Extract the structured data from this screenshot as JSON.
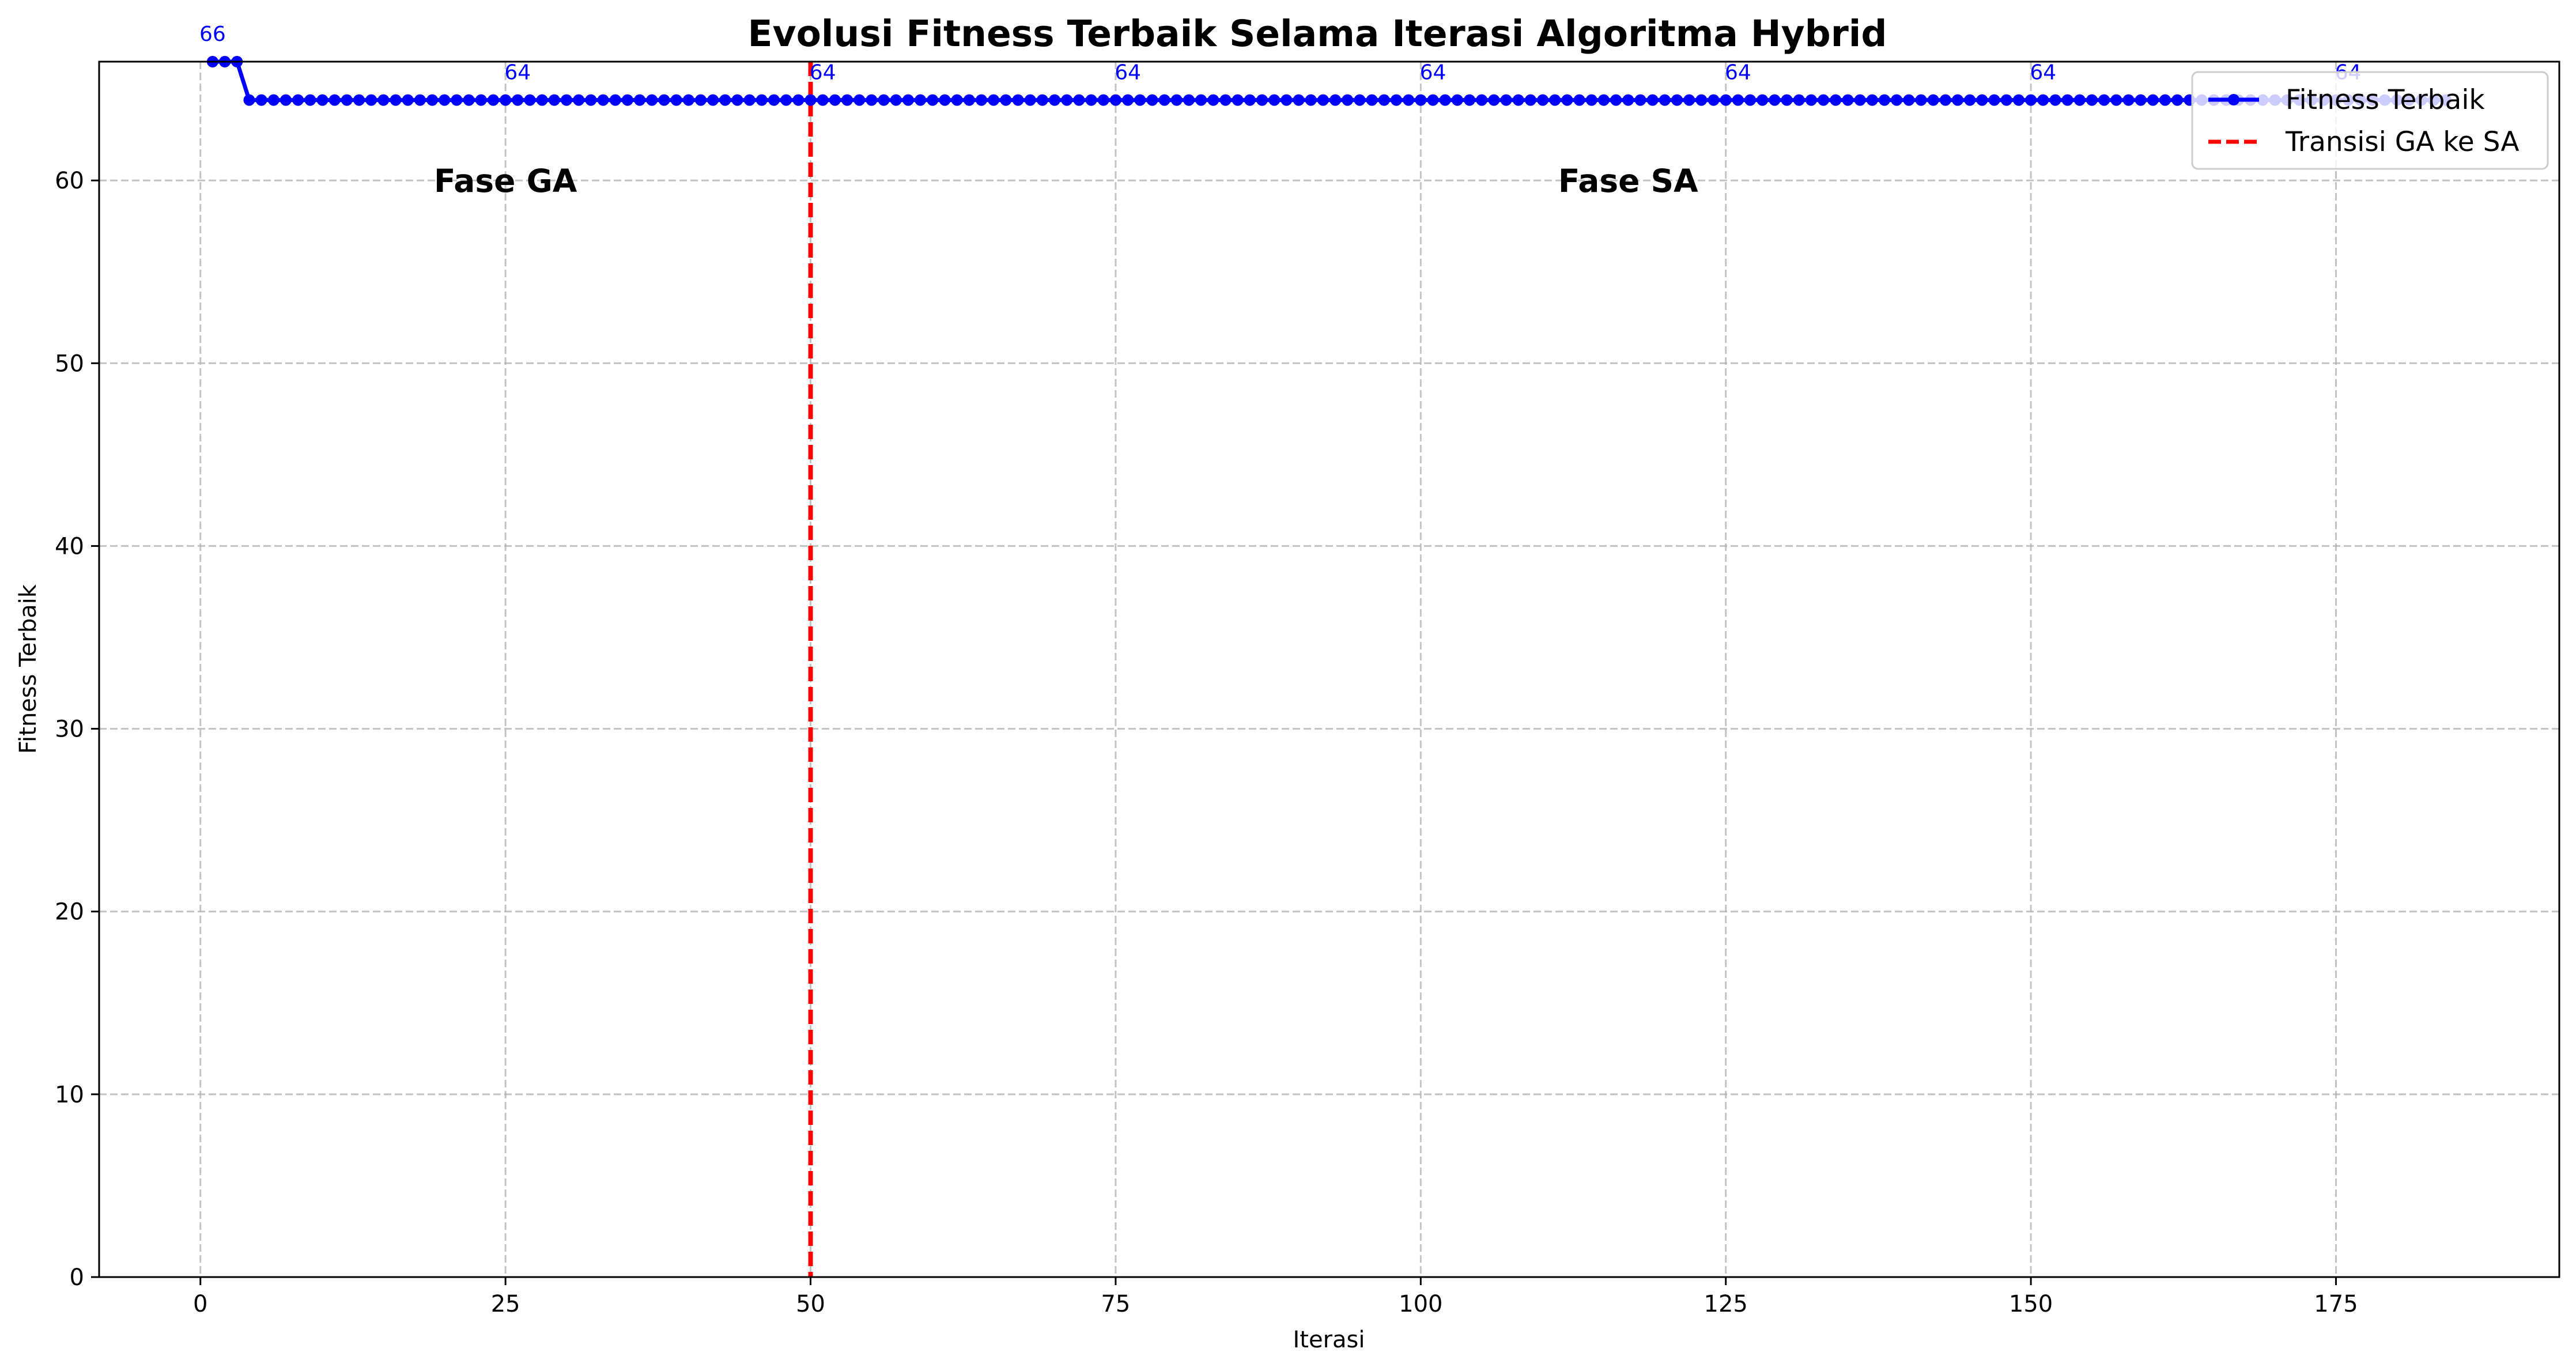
{
  "chart_data": {
    "type": "line",
    "title": "Evolusi Fitness Terbaik Selama Iterasi Algoritma Hybrid",
    "xlabel": "Iterasi",
    "ylabel": "Fitness Terbaik",
    "xlim": [
      -8.3,
      193.3
    ],
    "ylim": [
      0,
      66.5
    ],
    "xticks": [
      0,
      25,
      50,
      75,
      100,
      125,
      150,
      175
    ],
    "yticks": [
      0,
      10,
      20,
      30,
      40,
      50,
      60
    ],
    "grid": true,
    "legend_position": "top-right",
    "series": [
      {
        "name": "Fitness Terbaik",
        "color": "#0000ff",
        "marker": "circle",
        "x_start": 1,
        "x_end": 184,
        "values_first": [
          66.5,
          66.5,
          66.5
        ],
        "value_rest": 64.4
      }
    ],
    "transition": {
      "name": "Transisi GA ke SA",
      "x": 50,
      "color": "#ff0000",
      "style": "dashed"
    },
    "annotations": [
      {
        "text": "Fase GA",
        "x": 25,
        "y": 60
      },
      {
        "text": "Fase SA",
        "x": 117,
        "y": 60
      }
    ],
    "data_labels": [
      {
        "text": "66",
        "x": 1,
        "y": 66.5
      },
      {
        "text": "64",
        "x": 26,
        "y": 64.4
      },
      {
        "text": "64",
        "x": 51,
        "y": 64.4
      },
      {
        "text": "64",
        "x": 76,
        "y": 64.4
      },
      {
        "text": "64",
        "x": 101,
        "y": 64.4
      },
      {
        "text": "64",
        "x": 126,
        "y": 64.4
      },
      {
        "text": "64",
        "x": 151,
        "y": 64.4
      },
      {
        "text": "64",
        "x": 176,
        "y": 64.4
      }
    ]
  }
}
